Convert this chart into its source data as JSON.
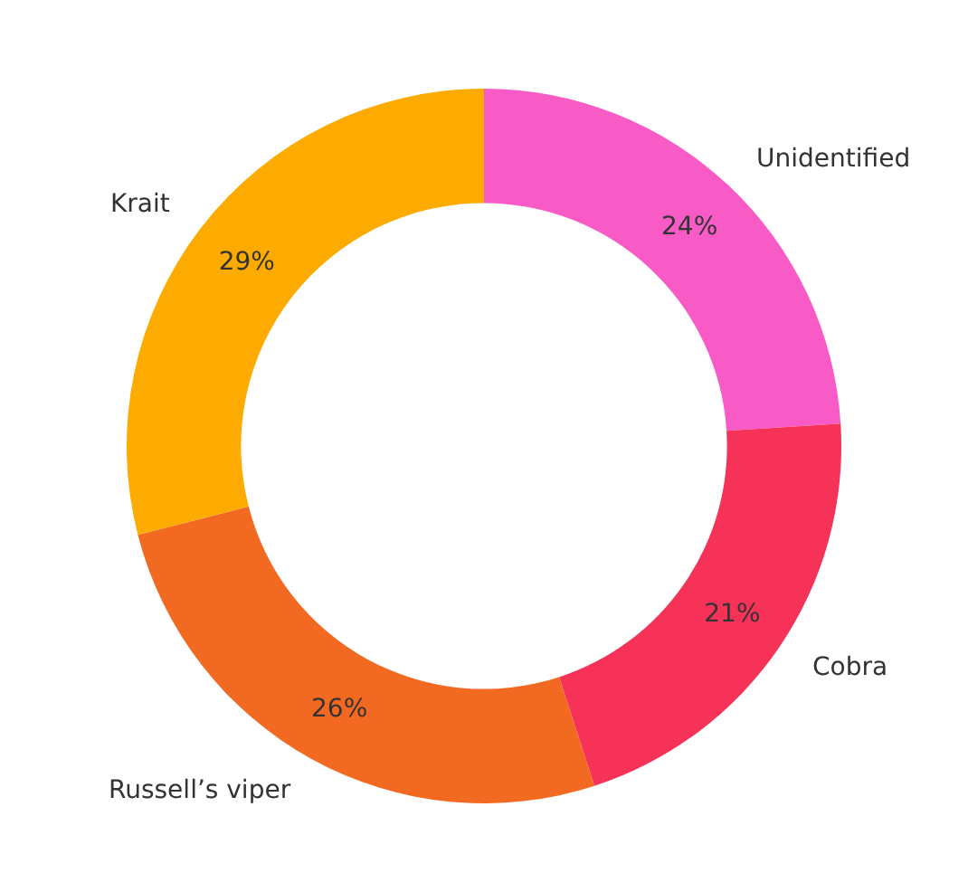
{
  "chart_data": {
    "type": "donut",
    "categories": [
      "Unidentified",
      "Cobra",
      "Russell’s viper",
      "Krait"
    ],
    "values": [
      24,
      21,
      26,
      29
    ],
    "colors": [
      "#f95bc6",
      "#f73258",
      "#f26a22",
      "#fdab00"
    ],
    "value_labels": [
      "24%",
      "21%",
      "26%",
      "29%"
    ],
    "legend": false
  }
}
